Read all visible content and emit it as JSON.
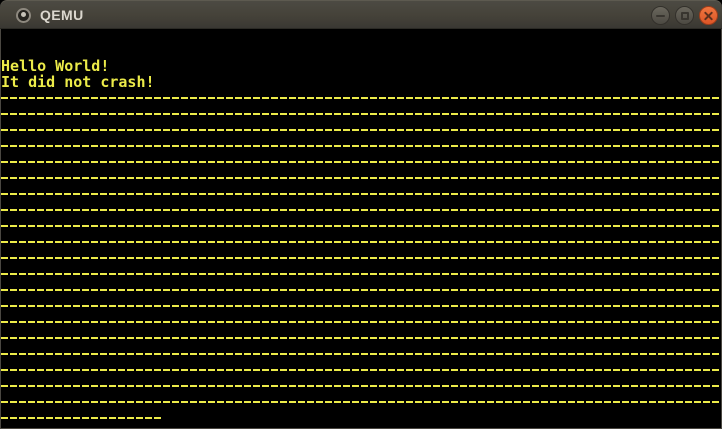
{
  "window": {
    "title": "QEMU",
    "icons": {
      "window_icon": "qemu-window-icon",
      "minimize": "minimize-icon",
      "maximize": "maximize-icon",
      "close": "close-icon"
    },
    "controls": [
      "minimize",
      "maximize",
      "close"
    ]
  },
  "screen": {
    "text_lines": [
      "Hello World!",
      "It did not crash!"
    ],
    "dash_rows": {
      "char": "-",
      "full_row_count": 20,
      "full_row_cols": 80,
      "partial_row_cols": 18
    },
    "colors": {
      "foreground": "#eceb49",
      "background": "#000000",
      "close_button": "#e8643a",
      "titlebar": "#413f39"
    }
  }
}
